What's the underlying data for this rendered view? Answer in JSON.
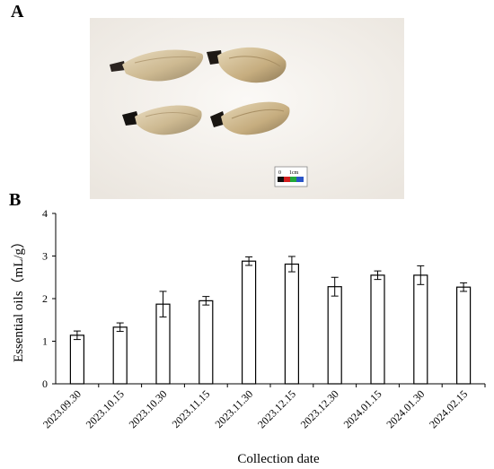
{
  "panels": {
    "a": "A",
    "b": "B"
  },
  "photo": {
    "scale_bar": {
      "zero_label": "0",
      "unit_label": "1cm"
    }
  },
  "chart_data": {
    "type": "bar",
    "categories": [
      "2023.09.30",
      "2023.10.15",
      "2023.10.30",
      "2023.11.15",
      "2023.11.30",
      "2023.12.15",
      "2023.12.30",
      "2024.01.15",
      "2024.01.30",
      "2024.02.15"
    ],
    "values": [
      1.14,
      1.33,
      1.87,
      1.95,
      2.88,
      2.81,
      2.28,
      2.55,
      2.55,
      2.27
    ],
    "errors": [
      0.1,
      0.1,
      0.3,
      0.1,
      0.1,
      0.18,
      0.22,
      0.1,
      0.22,
      0.1
    ],
    "xlabel": "Collection date",
    "ylabel": "Essential oils（mL/g）",
    "ylim": [
      0,
      4
    ],
    "yticks": [
      0,
      1,
      2,
      3,
      4
    ],
    "grid": false,
    "bar_fill": "#ffffff",
    "bar_stroke": "#000000"
  }
}
